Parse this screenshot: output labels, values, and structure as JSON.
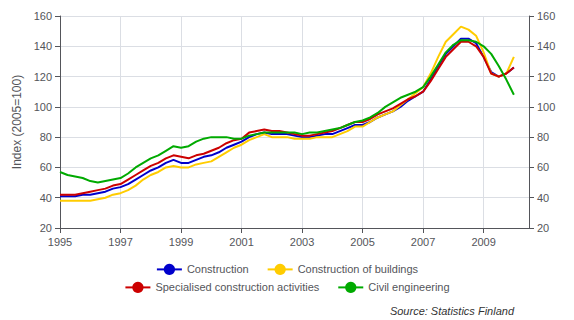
{
  "chart_data": {
    "type": "line",
    "ylabel": "Index (2005=100)",
    "annotation": "Source: Statistics Finland",
    "x": [
      1995.0,
      1995.25,
      1995.5,
      1995.75,
      1996.0,
      1996.25,
      1996.5,
      1996.75,
      1997.0,
      1997.25,
      1997.5,
      1997.75,
      1998.0,
      1998.25,
      1998.5,
      1998.75,
      1999.0,
      1999.25,
      1999.5,
      1999.75,
      2000.0,
      2000.25,
      2000.5,
      2000.75,
      2001.0,
      2001.25,
      2001.5,
      2001.75,
      2002.0,
      2002.25,
      2002.5,
      2002.75,
      2003.0,
      2003.25,
      2003.5,
      2003.75,
      2004.0,
      2004.25,
      2004.5,
      2004.75,
      2005.0,
      2005.25,
      2005.5,
      2005.75,
      2006.0,
      2006.25,
      2006.5,
      2006.75,
      2007.0,
      2007.25,
      2007.5,
      2007.75,
      2008.0,
      2008.25,
      2008.5,
      2008.75,
      2009.0,
      2009.25,
      2009.5,
      2009.75,
      2010.0
    ],
    "series": [
      {
        "name": "Construction",
        "color": "#0000cc",
        "values": [
          41,
          41,
          41,
          42,
          42,
          43,
          44,
          46,
          47,
          49,
          52,
          55,
          58,
          60,
          63,
          65,
          63,
          63,
          65,
          67,
          68,
          70,
          73,
          75,
          77,
          80,
          82,
          83,
          82,
          82,
          82,
          81,
          80,
          80,
          81,
          82,
          82,
          84,
          86,
          88,
          88,
          90,
          93,
          95,
          97,
          100,
          104,
          107,
          110,
          118,
          127,
          135,
          140,
          145,
          145,
          142,
          133,
          123,
          120,
          122,
          126
        ]
      },
      {
        "name": "Construction of buildings",
        "color": "#ffcc00",
        "values": [
          38,
          38,
          38,
          38,
          38,
          39,
          40,
          42,
          43,
          45,
          48,
          52,
          55,
          57,
          60,
          61,
          60,
          60,
          62,
          63,
          64,
          67,
          70,
          73,
          75,
          78,
          80,
          82,
          80,
          80,
          80,
          79,
          79,
          79,
          80,
          80,
          80,
          82,
          84,
          87,
          87,
          90,
          93,
          95,
          97,
          101,
          105,
          109,
          113,
          122,
          133,
          143,
          148,
          153,
          151,
          147,
          136,
          122,
          120,
          122,
          133
        ]
      },
      {
        "name": "Specialised construction activities",
        "color": "#cc0000",
        "values": [
          42,
          42,
          42,
          43,
          44,
          45,
          46,
          48,
          49,
          52,
          55,
          58,
          61,
          63,
          66,
          68,
          67,
          66,
          68,
          69,
          71,
          73,
          76,
          78,
          79,
          83,
          84,
          85,
          84,
          84,
          83,
          82,
          81,
          81,
          82,
          83,
          84,
          86,
          88,
          90,
          90,
          92,
          95,
          97,
          99,
          102,
          105,
          107,
          110,
          117,
          125,
          133,
          138,
          143,
          143,
          140,
          133,
          122,
          120,
          122,
          126
        ]
      },
      {
        "name": "Civil engineering",
        "color": "#00aa00",
        "values": [
          57,
          55,
          54,
          53,
          51,
          50,
          51,
          52,
          53,
          56,
          60,
          63,
          66,
          68,
          71,
          74,
          73,
          74,
          77,
          79,
          80,
          80,
          80,
          79,
          79,
          81,
          82,
          83,
          83,
          83,
          83,
          83,
          82,
          83,
          83,
          84,
          85,
          86,
          88,
          90,
          91,
          93,
          96,
          100,
          103,
          106,
          108,
          110,
          113,
          120,
          128,
          136,
          141,
          144,
          144,
          143,
          140,
          135,
          127,
          118,
          108
        ]
      }
    ],
    "xlim": [
      1995,
      2010.5
    ],
    "xticks": [
      1995,
      1997,
      1999,
      2001,
      2003,
      2005,
      2007,
      2009
    ],
    "ylim": [
      20,
      160
    ],
    "yticks": [
      20,
      40,
      60,
      80,
      100,
      120,
      140,
      160
    ],
    "y2lim": [
      20,
      160
    ],
    "y2ticks": [
      20,
      40,
      60,
      80,
      100,
      120,
      140,
      160
    ],
    "grid": true,
    "legend": "bottom"
  }
}
